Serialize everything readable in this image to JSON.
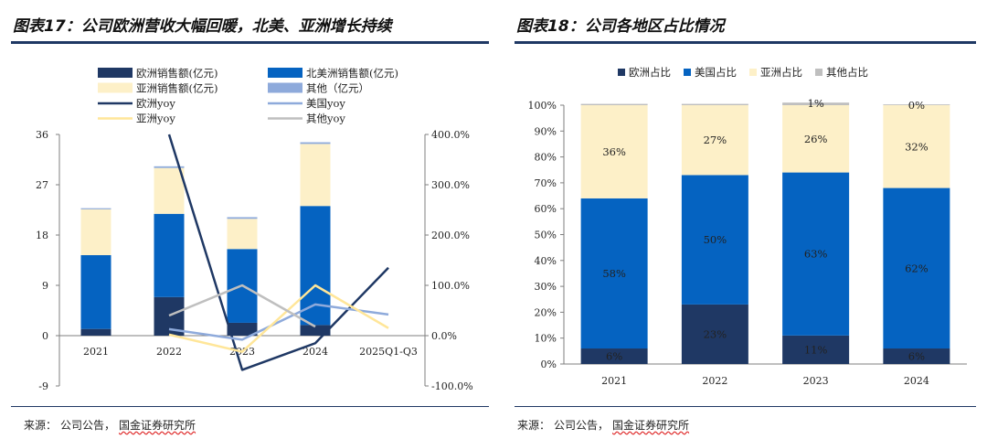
{
  "left_title": "图表17：公司欧洲营收大幅回暖，北美、亚洲增长持续",
  "right_title": "图表18：公司各地区占比情况",
  "left_source": {
    "label": "来源：",
    "a": "公司公告，",
    "b": "国金证券研究所"
  },
  "right_source": {
    "label": "来源：",
    "a": "公司公告，",
    "b": "国金证券研究所"
  },
  "colors": {
    "europe": "#1f3864",
    "north_america": "#0563c1",
    "asia": "#fdf0c8",
    "other": "#8eaadb",
    "europe_yoy": "#1f3864",
    "us_yoy": "#8eaadb",
    "asia_yoy": "#ffe699",
    "other_yoy": "#bfbfbf"
  },
  "chart_data": [
    {
      "type": "bar",
      "stacked": true,
      "title": "图表17：公司欧洲营收大幅回暖，北美、亚洲增长持续",
      "categories": [
        "2021",
        "2022",
        "2023",
        "2024",
        "2025Q1-Q3"
      ],
      "y_left_ticks": [
        "36",
        "27",
        "18",
        "9",
        "0",
        "-9"
      ],
      "ylim_left": [
        -9,
        36
      ],
      "y_right_ticks": [
        "400.0%",
        "300.0%",
        "200.0%",
        "100.0%",
        "0.0%",
        "-100.0%"
      ],
      "ylim_right": [
        -100,
        400
      ],
      "legend": [
        "欧洲销售额(亿元)",
        "北美洲销售额(亿元)",
        "亚洲销售额(亿元)",
        "其他（亿元）",
        "欧洲yoy",
        "美国yoy",
        "亚洲yoy",
        "其他yoy"
      ],
      "series": [
        {
          "name": "欧洲销售额(亿元)",
          "kind": "bar",
          "values": [
            1.2,
            6.9,
            2.3,
            1.9,
            null
          ]
        },
        {
          "name": "北美洲销售额(亿元)",
          "kind": "bar",
          "values": [
            13.2,
            14.9,
            13.2,
            21.3,
            null
          ]
        },
        {
          "name": "亚洲销售额(亿元)",
          "kind": "bar",
          "values": [
            8.3,
            8.2,
            5.4,
            11.1,
            null
          ]
        },
        {
          "name": "其他（亿元）",
          "kind": "bar",
          "values": [
            0.1,
            0.3,
            0.3,
            0.3,
            null
          ]
        },
        {
          "name": "欧洲yoy",
          "kind": "line",
          "axis": "right",
          "values": [
            null,
            400,
            -68,
            -15,
            135
          ]
        },
        {
          "name": "美国yoy",
          "kind": "line",
          "axis": "right",
          "values": [
            null,
            13,
            -8,
            62,
            42
          ]
        },
        {
          "name": "亚洲yoy",
          "kind": "line",
          "axis": "right",
          "values": [
            null,
            2,
            -32,
            100,
            15
          ]
        },
        {
          "name": "其他yoy",
          "kind": "line",
          "axis": "right",
          "values": [
            null,
            40,
            100,
            18,
            null
          ]
        }
      ]
    },
    {
      "type": "bar",
      "stacked": true,
      "title": "图表18：公司各地区占比情况",
      "categories": [
        "2021",
        "2022",
        "2023",
        "2024"
      ],
      "y_ticks": [
        "100%",
        "90%",
        "80%",
        "70%",
        "60%",
        "50%",
        "40%",
        "30%",
        "20%",
        "10%",
        "0%"
      ],
      "ylim": [
        0,
        100
      ],
      "legend": [
        "欧洲占比",
        "美国占比",
        "亚洲占比",
        "其他占比"
      ],
      "series": [
        {
          "name": "欧洲占比",
          "values": [
            6,
            23,
            11,
            6
          ],
          "labels": [
            "6%",
            "23%",
            "11%",
            "6%"
          ]
        },
        {
          "name": "美国占比",
          "values": [
            58,
            50,
            63,
            62
          ],
          "labels": [
            "58%",
            "50%",
            "63%",
            "62%"
          ]
        },
        {
          "name": "亚洲占比",
          "values": [
            36,
            27,
            26,
            32
          ],
          "labels": [
            "36%",
            "27%",
            "26%",
            "32%"
          ]
        },
        {
          "name": "其他占比",
          "values": [
            0.5,
            0.5,
            1,
            0.3
          ],
          "labels": [
            "",
            "",
            "1%",
            "0%"
          ]
        }
      ]
    }
  ]
}
